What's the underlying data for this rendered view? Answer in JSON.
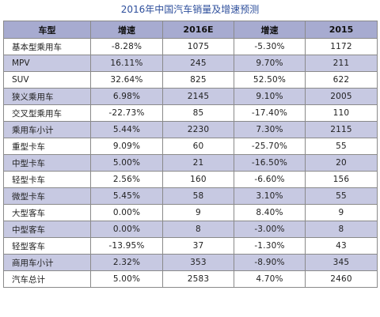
{
  "title": "2016年中国汽车销量及增速预测",
  "headers": [
    "车型",
    "增速",
    "2016E",
    "增速",
    "2015"
  ],
  "rows": [
    [
      "基本型乘用车",
      "-8.28%",
      "1075",
      "-5.30%",
      "1172"
    ],
    [
      "MPV",
      "16.11%",
      "245",
      "9.70%",
      "211"
    ],
    [
      "SUV",
      "32.64%",
      "825",
      "52.50%",
      "622"
    ],
    [
      "狭义乘用车",
      "6.98%",
      "2145",
      "9.10%",
      "2005"
    ],
    [
      "交叉型乘用车",
      "-22.73%",
      "85",
      "-17.40%",
      "110"
    ],
    [
      "乘用车小计",
      "5.44%",
      "2230",
      "7.30%",
      "2115"
    ],
    [
      "重型卡车",
      "9.09%",
      "60",
      "-25.70%",
      "55"
    ],
    [
      "中型卡车",
      "5.00%",
      "21",
      "-16.50%",
      "20"
    ],
    [
      "轻型卡车",
      "2.56%",
      "160",
      "-6.60%",
      "156"
    ],
    [
      "微型卡车",
      "5.45%",
      "58",
      "3.10%",
      "55"
    ],
    [
      "大型客车",
      "0.00%",
      "9",
      "8.40%",
      "9"
    ],
    [
      "中型客车",
      "0.00%",
      "8",
      "-3.00%",
      "8"
    ],
    [
      "轻型客车",
      "-13.95%",
      "37",
      "-1.30%",
      "43"
    ],
    [
      "商用车小计",
      "2.32%",
      "353",
      "-8.90%",
      "345"
    ],
    [
      "汽车总计",
      "5.00%",
      "2583",
      "4.70%",
      "2460"
    ]
  ],
  "colors": {
    "title": "#2e4f9c",
    "header_bg": "#a7abd0",
    "stripe_bg": "#c7c9e2",
    "border": "#8a8a8a"
  }
}
